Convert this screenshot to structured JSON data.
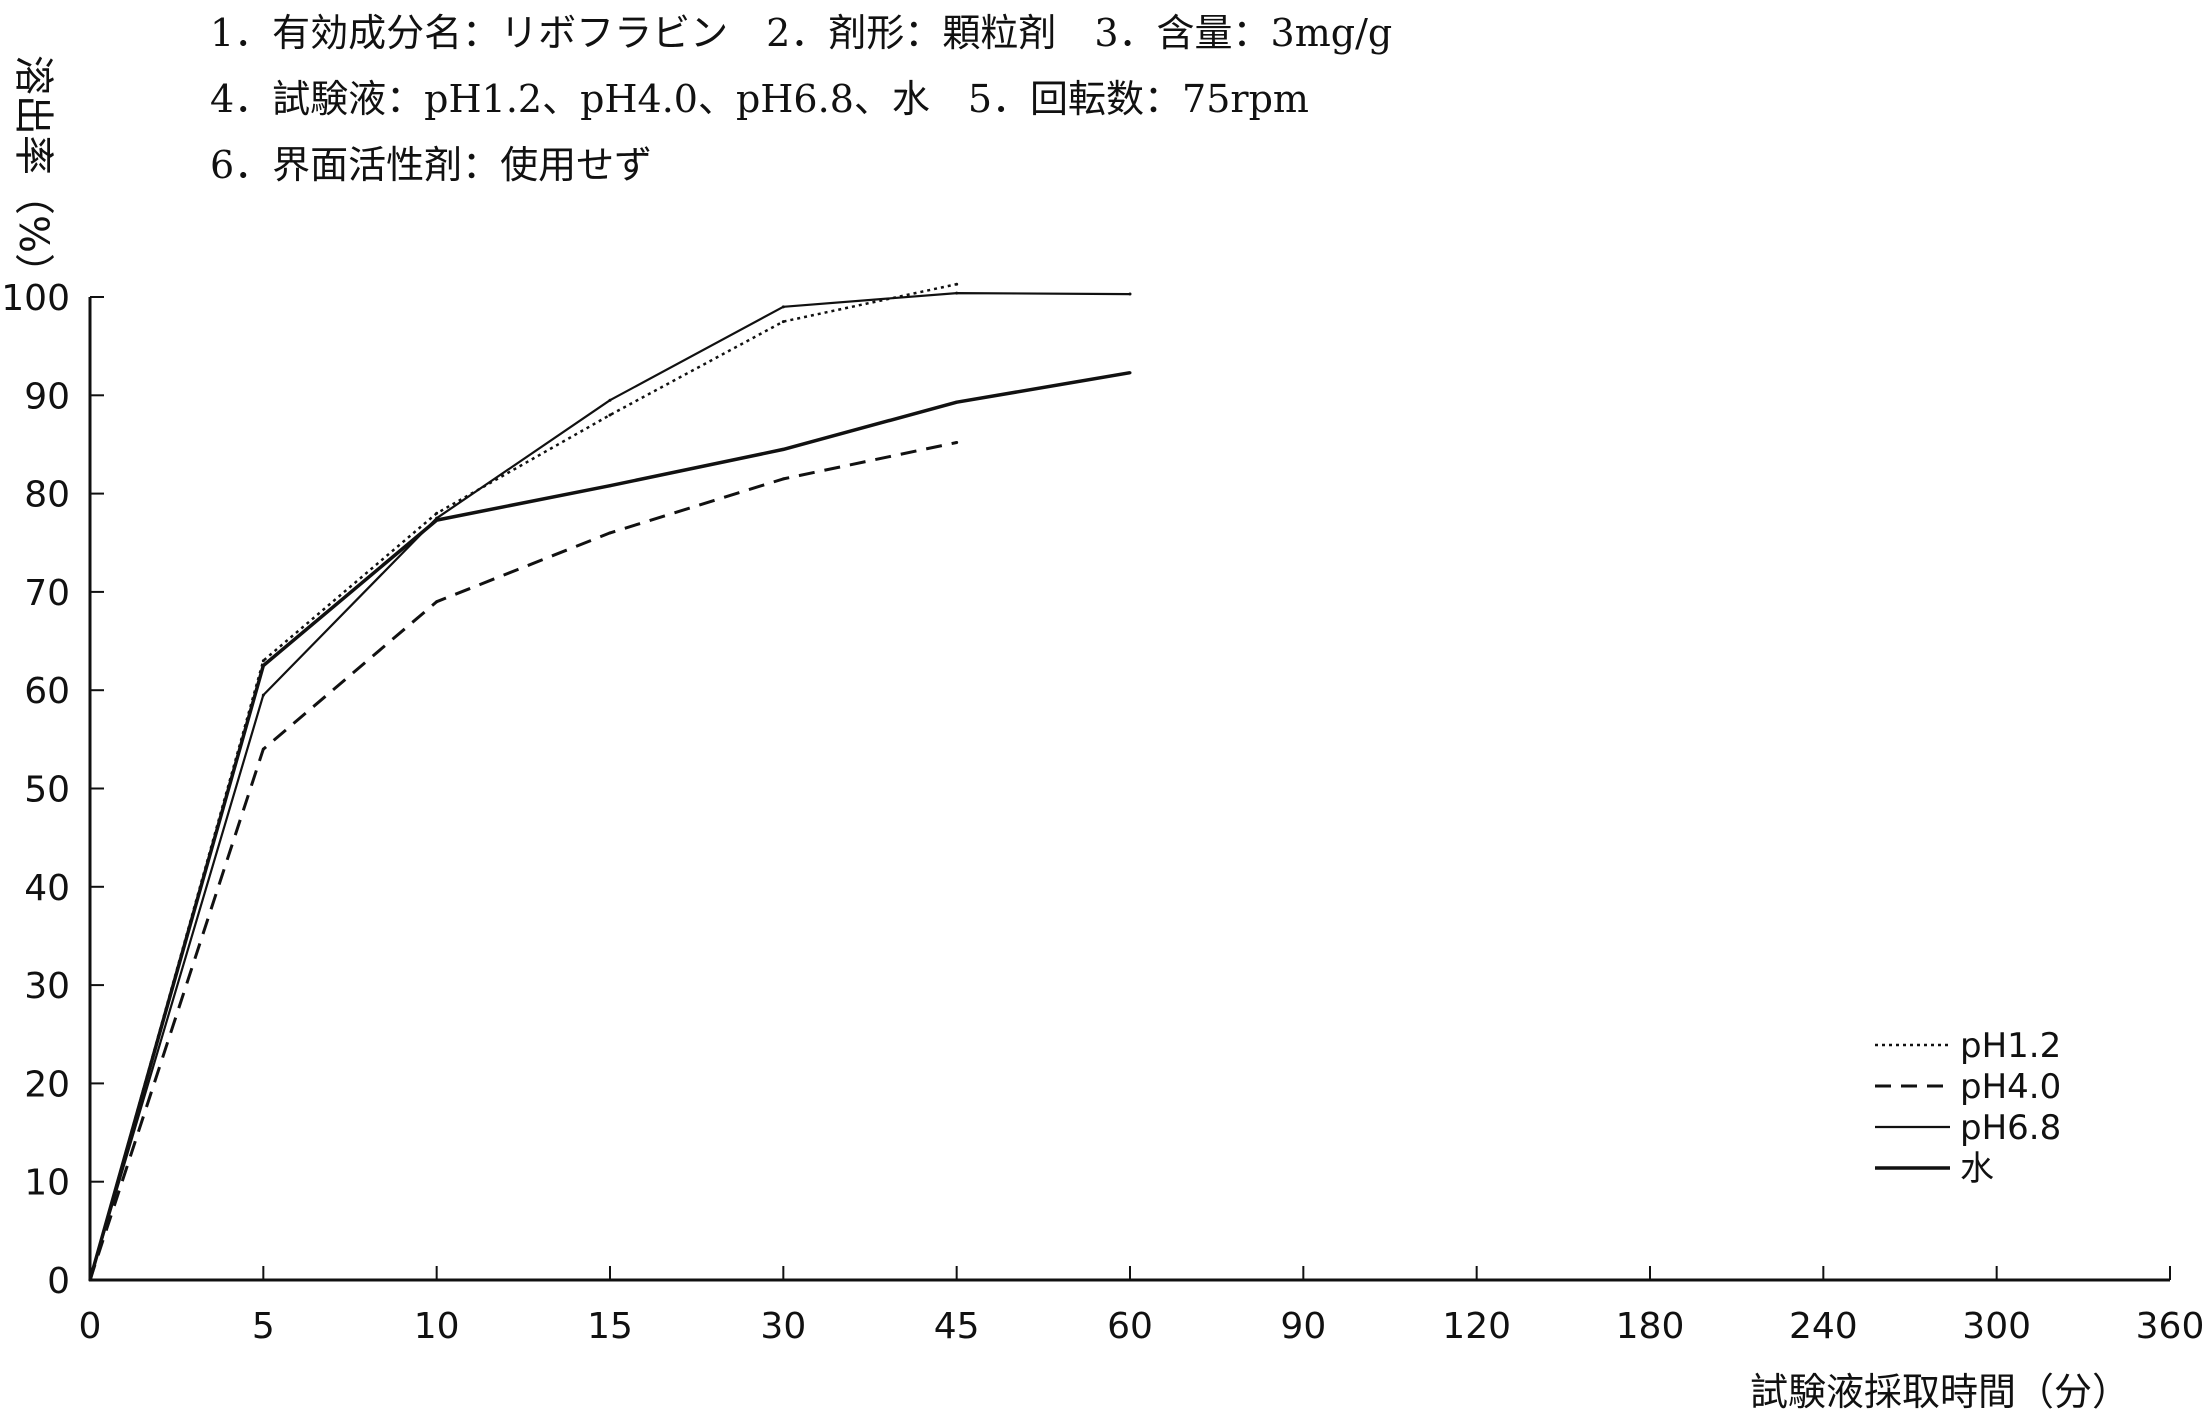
{
  "header": {
    "line1": "1．有効成分名：リボフラビン　2．剤形：顆粒剤　3．含量：3mg/g",
    "line2": "4．試験液：pH1.2、pH4.0、pH6.8、水　5．回転数：75rpm",
    "line3": "6．界面活性剤：使用せず"
  },
  "chart_data": {
    "type": "line",
    "title": "",
    "ylabel": "溶出率（%）",
    "xlabel": "試験液採取時間（分）",
    "categories": [
      "0",
      "5",
      "10",
      "15",
      "30",
      "45",
      "60",
      "90",
      "120",
      "180",
      "240",
      "300",
      "360"
    ],
    "ylim": [
      0,
      100
    ],
    "yticks": [
      0,
      10,
      20,
      30,
      40,
      50,
      60,
      70,
      80,
      90,
      100
    ],
    "grid": false,
    "legend_position": "bottom-right",
    "series": [
      {
        "name": "pH1.2",
        "style": "dotted",
        "color": "#111111",
        "x": [
          "0",
          "5",
          "10",
          "15",
          "30",
          "45"
        ],
        "values": [
          0,
          63,
          78,
          88,
          97.5,
          101.3
        ]
      },
      {
        "name": "pH4.0",
        "style": "dashed",
        "color": "#111111",
        "x": [
          "0",
          "5",
          "10",
          "15",
          "30",
          "45"
        ],
        "values": [
          0,
          54,
          69,
          76,
          81.5,
          85.2
        ]
      },
      {
        "name": "pH6.8",
        "style": "solid",
        "color": "#111111",
        "x": [
          "0",
          "5",
          "10",
          "15",
          "30",
          "45",
          "60"
        ],
        "values": [
          0,
          59.5,
          77.5,
          89.5,
          99,
          100.4,
          100.3
        ]
      },
      {
        "name": "水",
        "style": "solid-thick",
        "color": "#111111",
        "x": [
          "0",
          "5",
          "10",
          "15",
          "30",
          "45",
          "60"
        ],
        "values": [
          0,
          62.5,
          77.3,
          80.8,
          84.5,
          89.3,
          92.3
        ]
      }
    ]
  }
}
